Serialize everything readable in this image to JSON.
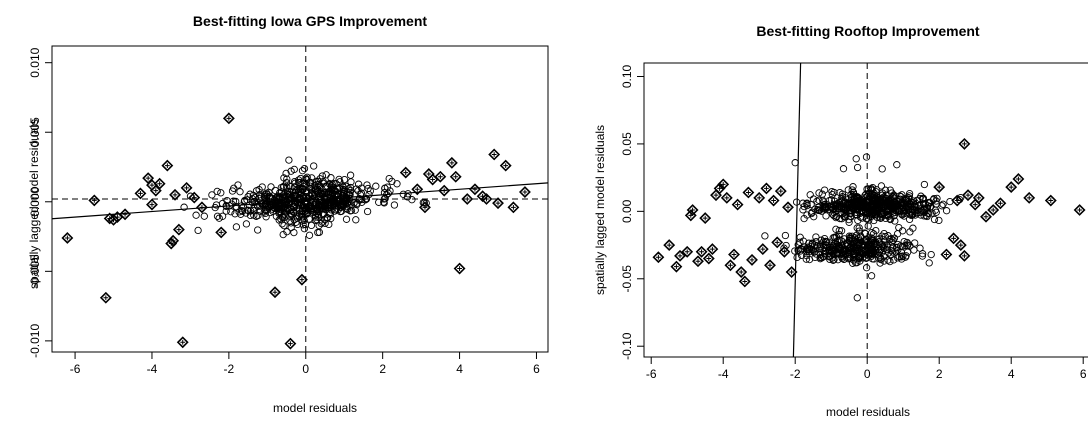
{
  "chart_data": [
    {
      "type": "scatter",
      "title": "Best-fitting Iowa GPS Improvement",
      "xlabel": "model residuals",
      "ylabel": "spatially lagged model residuals",
      "xlim": [
        -6.6,
        6.3
      ],
      "ylim": [
        -0.0108,
        0.0112
      ],
      "xticks": [
        -6,
        -4,
        -2,
        0,
        2,
        4,
        6
      ],
      "xtick_labels": [
        "-6",
        "-4",
        "-2",
        "0",
        "2",
        "4",
        "6"
      ],
      "yticks": [
        -0.01,
        -0.005,
        0.0,
        0.005,
        0.01
      ],
      "ytick_labels": [
        "-0.010",
        "-0.005",
        "0.000",
        "0.005",
        "0.010"
      ],
      "grid": false,
      "reference_lines": {
        "vertical_dashed_x": 0,
        "horizontal_dashed_y": 0.0002
      },
      "fit_line": {
        "slope": 0.0002,
        "intercept": 0.0001
      },
      "highlighted_points": [
        [
          -6.2,
          -0.0026
        ],
        [
          -5.5,
          0.0001
        ],
        [
          -5.2,
          -0.0069
        ],
        [
          -5.1,
          -0.0012
        ],
        [
          -5.0,
          -0.0013
        ],
        [
          -4.9,
          -0.0011
        ],
        [
          -4.7,
          -0.0009
        ],
        [
          -4.3,
          0.0006
        ],
        [
          -4.1,
          0.0017
        ],
        [
          -4.0,
          0.0012
        ],
        [
          -4.0,
          -0.0002
        ],
        [
          -3.9,
          0.0008
        ],
        [
          -3.8,
          0.0013
        ],
        [
          -3.6,
          0.0026
        ],
        [
          -3.5,
          -0.003
        ],
        [
          -3.45,
          -0.0028
        ],
        [
          -3.4,
          0.0005
        ],
        [
          -3.3,
          -0.002
        ],
        [
          -3.2,
          -0.0101
        ],
        [
          -3.1,
          0.001
        ],
        [
          -2.9,
          0.0003
        ],
        [
          -2.7,
          -0.0004
        ],
        [
          -2.2,
          -0.0022
        ],
        [
          -2.0,
          0.006
        ],
        [
          -0.8,
          -0.0065
        ],
        [
          -0.4,
          -0.0102
        ],
        [
          -0.1,
          -0.0056
        ],
        [
          2.6,
          0.0021
        ],
        [
          2.9,
          0.0009
        ],
        [
          3.1,
          -0.0004
        ],
        [
          3.2,
          0.002
        ],
        [
          3.3,
          0.0016
        ],
        [
          3.5,
          0.0018
        ],
        [
          3.6,
          0.0008
        ],
        [
          3.8,
          0.0028
        ],
        [
          3.9,
          0.0018
        ],
        [
          4.0,
          -0.0048
        ],
        [
          4.2,
          0.0002
        ],
        [
          4.4,
          0.0009
        ],
        [
          4.6,
          0.0004
        ],
        [
          4.7,
          0.0002
        ],
        [
          4.9,
          0.0034
        ],
        [
          5.2,
          0.0026
        ],
        [
          5.4,
          -0.0004
        ],
        [
          5.7,
          0.0007
        ],
        [
          5.0,
          -0.0001
        ]
      ]
    },
    {
      "type": "scatter",
      "title": "Best-fitting Rooftop Improvement",
      "xlabel": "model residuals",
      "ylabel": "spatially lagged model residuals",
      "xlim": [
        -6.2,
        6.3
      ],
      "ylim": [
        -0.108,
        0.11
      ],
      "xticks": [
        -6,
        -4,
        -2,
        0,
        2,
        4,
        6
      ],
      "xtick_labels": [
        "-6",
        "-4",
        "-2",
        "0",
        "2",
        "4",
        "6"
      ],
      "yticks": [
        -0.1,
        -0.05,
        0.0,
        0.05,
        0.1
      ],
      "ytick_labels": [
        "-0.10",
        "-0.05",
        "0.00",
        "0.05",
        "0.10"
      ],
      "grid": false,
      "reference_lines": {
        "vertical_dashed_x": 0
      },
      "fit_line_points": [
        [
          -2.05,
          -0.108
        ],
        [
          -1.85,
          0.11
        ]
      ],
      "highlighted_points": [
        [
          -5.8,
          -0.034
        ],
        [
          -5.5,
          -0.025
        ],
        [
          -5.3,
          -0.041
        ],
        [
          -5.2,
          -0.033
        ],
        [
          -5.0,
          -0.03
        ],
        [
          -4.9,
          -0.003
        ],
        [
          -4.85,
          0.001
        ],
        [
          -4.7,
          -0.037
        ],
        [
          -4.6,
          -0.03
        ],
        [
          -4.5,
          -0.005
        ],
        [
          -4.4,
          -0.035
        ],
        [
          -4.3,
          -0.028
        ],
        [
          -4.2,
          0.012
        ],
        [
          -4.1,
          0.017
        ],
        [
          -4.0,
          0.02
        ],
        [
          -3.9,
          0.01
        ],
        [
          -3.8,
          -0.04
        ],
        [
          -3.7,
          -0.032
        ],
        [
          -3.6,
          0.005
        ],
        [
          -3.5,
          -0.045
        ],
        [
          -3.4,
          -0.052
        ],
        [
          -3.3,
          0.014
        ],
        [
          -3.2,
          -0.036
        ],
        [
          -3.0,
          0.01
        ],
        [
          -2.9,
          -0.028
        ],
        [
          -2.8,
          0.017
        ],
        [
          -2.7,
          -0.04
        ],
        [
          -2.6,
          0.008
        ],
        [
          -2.5,
          -0.023
        ],
        [
          -2.4,
          0.015
        ],
        [
          -2.3,
          -0.03
        ],
        [
          -2.2,
          0.003
        ],
        [
          -2.1,
          -0.045
        ],
        [
          2.0,
          0.018
        ],
        [
          2.2,
          -0.032
        ],
        [
          2.4,
          -0.02
        ],
        [
          2.5,
          0.008
        ],
        [
          2.6,
          -0.025
        ],
        [
          2.7,
          0.05
        ],
        [
          2.7,
          -0.033
        ],
        [
          2.8,
          0.012
        ],
        [
          3.0,
          0.005
        ],
        [
          3.1,
          0.01
        ],
        [
          3.3,
          -0.004
        ],
        [
          3.5,
          0.001
        ],
        [
          3.7,
          0.006
        ],
        [
          4.0,
          0.018
        ],
        [
          4.2,
          0.024
        ],
        [
          4.5,
          0.01
        ],
        [
          5.1,
          0.008
        ],
        [
          5.9,
          0.001
        ]
      ]
    }
  ]
}
